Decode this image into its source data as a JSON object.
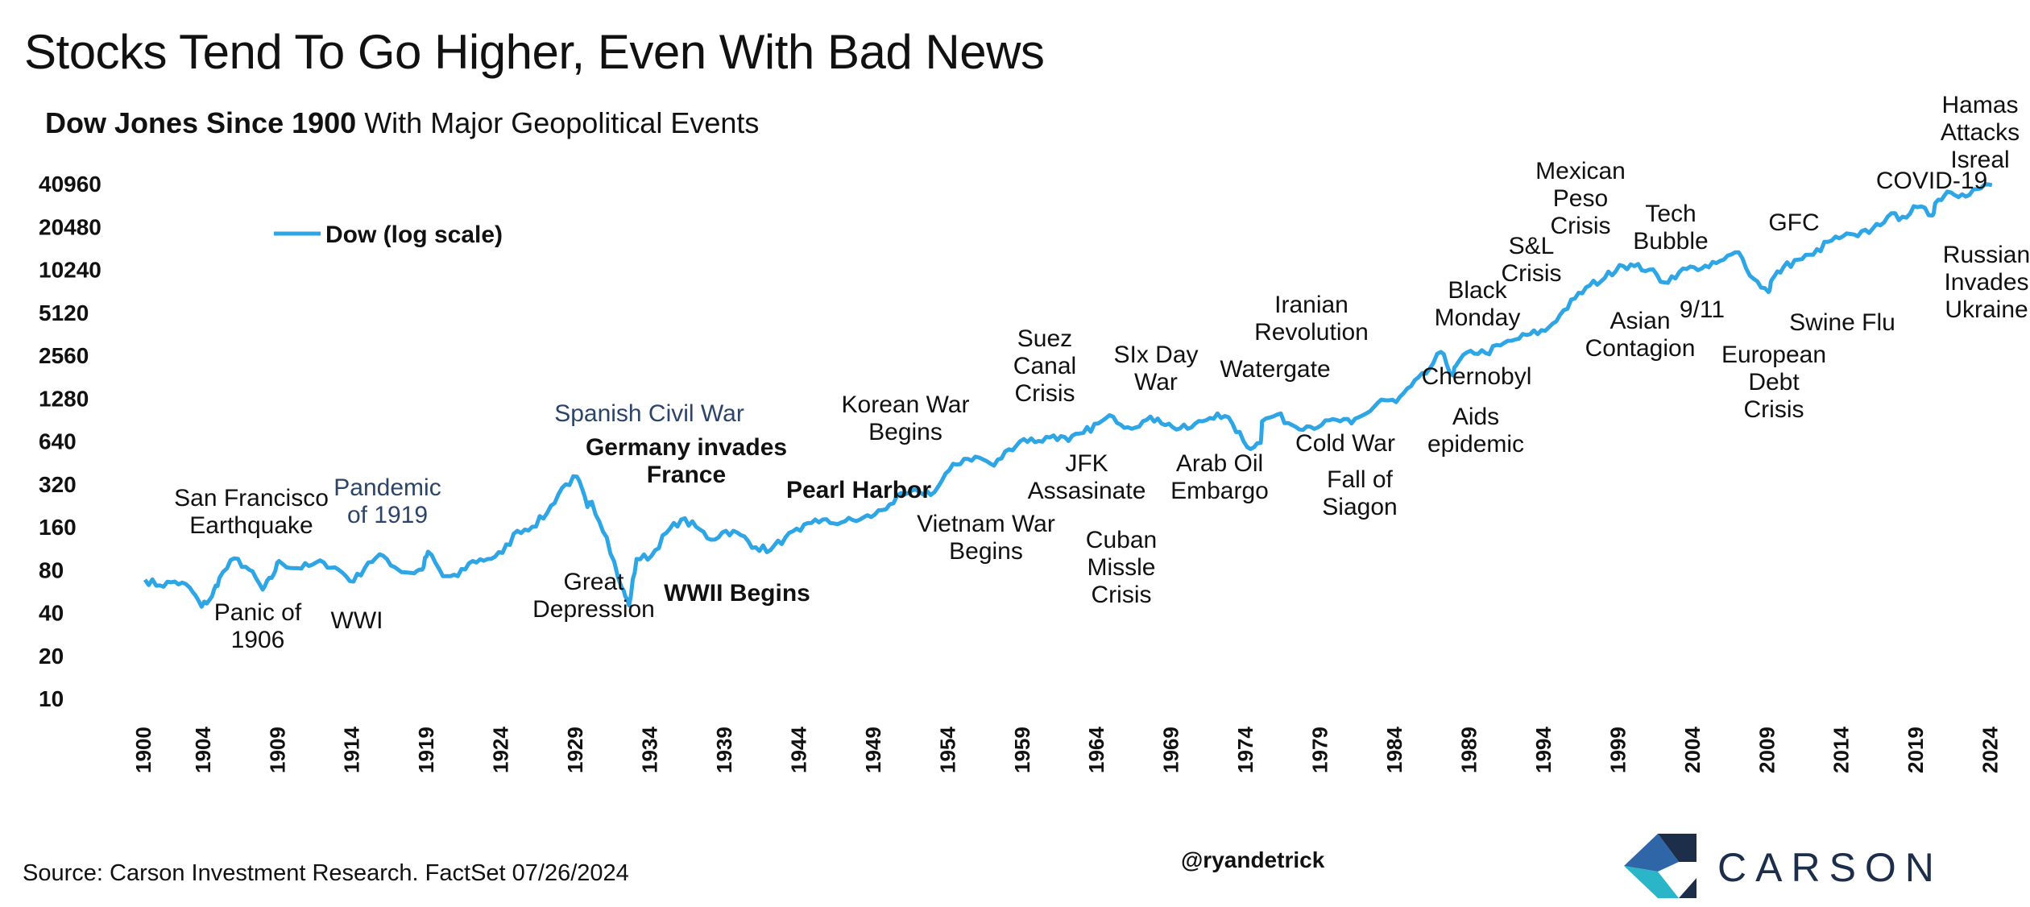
{
  "title": "Stocks Tend To Go Higher, Even With Bad News",
  "subtitle_bold": "Dow Jones Since 1900",
  "subtitle_rest": "With Major Geopolitical Events",
  "source": "Source: Carson Investment Research. FactSet 07/26/2024",
  "handle": "@ryandetrick",
  "brand": "CARSON",
  "colors": {
    "line": "#2ea6e6",
    "text": "#111111",
    "blue_annotation": "#2b4468",
    "logo_dark": "#1c2e4a",
    "logo_teal": "#2bb5c9"
  },
  "chart_data": {
    "type": "line",
    "scale": "log2",
    "ylim": [
      10,
      40960
    ],
    "xlim": [
      1900,
      2024.5
    ],
    "y_ticks": [
      "10",
      "20",
      "40",
      "80",
      "160",
      "320",
      "640",
      "1280",
      "2560",
      "5120",
      "10240",
      "20480",
      "40960"
    ],
    "x_ticks": [
      "1900",
      "1904",
      "1909",
      "1914",
      "1919",
      "1924",
      "1929",
      "1934",
      "1939",
      "1944",
      "1949",
      "1954",
      "1959",
      "1964",
      "1969",
      "1974",
      "1979",
      "1984",
      "1989",
      "1994",
      "1999",
      "2004",
      "2009",
      "2014",
      "2019",
      "2024"
    ],
    "legend": {
      "label": "Dow (log scale)",
      "placement": "top-left"
    },
    "grid": false,
    "series": [
      {
        "name": "Dow (log scale)",
        "x": [
          1900,
          1901,
          1902,
          1903,
          1903.8,
          1904.5,
          1905,
          1906,
          1907,
          1907.9,
          1908.5,
          1909,
          1910,
          1911,
          1912,
          1913,
          1914,
          1915,
          1916,
          1917,
          1917.9,
          1918.6,
          1919,
          1920,
          1921,
          1922,
          1923,
          1924,
          1925,
          1926,
          1927,
          1928,
          1929,
          1929.7,
          1930,
          1931,
          1932,
          1932.5,
          1933,
          1934,
          1935,
          1936,
          1937,
          1938,
          1939,
          1940,
          1941,
          1942,
          1943,
          1944,
          1945,
          1946,
          1947,
          1948,
          1949,
          1950,
          1951,
          1952,
          1953,
          1954,
          1955,
          1956,
          1957,
          1958,
          1959,
          1960,
          1961,
          1962,
          1963,
          1964,
          1965,
          1966,
          1967,
          1968,
          1969,
          1970,
          1971,
          1972,
          1973,
          1974,
          1974.9,
          1975,
          1976,
          1977,
          1978,
          1979,
          1980,
          1981,
          1982,
          1983,
          1984,
          1985,
          1986,
          1987,
          1987.8,
          1988,
          1989,
          1990,
          1991,
          1992,
          1993,
          1994,
          1995,
          1996,
          1997,
          1998,
          1999,
          2000,
          2001,
          2002,
          2003,
          2004,
          2005,
          2006,
          2007,
          2008,
          2009,
          2009.2,
          2010,
          2011,
          2012,
          2013,
          2014,
          2015,
          2016,
          2017,
          2018,
          2019,
          2020,
          2020.2,
          2021,
          2022,
          2023,
          2024
        ],
        "y": [
          68,
          62,
          66,
          60,
          44,
          52,
          70,
          96,
          80,
          58,
          70,
          92,
          82,
          85,
          90,
          80,
          66,
          90,
          100,
          80,
          76,
          80,
          107,
          72,
          72,
          92,
          95,
          105,
          150,
          160,
          200,
          300,
          360,
          220,
          240,
          135,
          60,
          45,
          95,
          100,
          145,
          180,
          160,
          130,
          150,
          140,
          115,
          110,
          135,
          150,
          180,
          170,
          175,
          180,
          195,
          230,
          270,
          280,
          280,
          400,
          480,
          490,
          430,
          560,
          660,
          640,
          700,
          640,
          730,
          850,
          950,
          800,
          880,
          920,
          800,
          780,
          880,
          1000,
          850,
          580,
          620,
          880,
          980,
          830,
          810,
          830,
          900,
          850,
          1000,
          1250,
          1200,
          1550,
          1900,
          2700,
          1850,
          2150,
          2750,
          2650,
          3000,
          3300,
          3600,
          3800,
          4900,
          6400,
          7900,
          8900,
          11000,
          10800,
          10200,
          8300,
          9800,
          10600,
          10600,
          12000,
          13500,
          8800,
          7100,
          8600,
          10600,
          12000,
          13000,
          16000,
          17500,
          17500,
          19800,
          24000,
          24000,
          28000,
          24500,
          30000,
          36000,
          34500,
          37500,
          40000
        ]
      }
    ],
    "annotations": [
      {
        "text": "San Francisco\nEarthquake",
        "style": "normal"
      },
      {
        "text": "Panic of\n1906",
        "style": "normal"
      },
      {
        "text": "WWI",
        "style": "normal"
      },
      {
        "text": "Pandemic\nof 1919",
        "style": "blue"
      },
      {
        "text": "Great\nDepression",
        "style": "normal"
      },
      {
        "text": "Spanish Civil War",
        "style": "blue"
      },
      {
        "text": "Germany invades\nFrance",
        "style": "bold"
      },
      {
        "text": "WWII Begins",
        "style": "bold"
      },
      {
        "text": "Pearl Harbor",
        "style": "bold"
      },
      {
        "text": "Korean War\nBegins",
        "style": "normal"
      },
      {
        "text": "Vietnam War\nBegins",
        "style": "normal"
      },
      {
        "text": "Suez\nCanal\nCrisis",
        "style": "normal"
      },
      {
        "text": "JFK\nAssasinate",
        "style": "normal"
      },
      {
        "text": "Cuban\nMissle\nCrisis",
        "style": "normal"
      },
      {
        "text": "SIx Day\nWar",
        "style": "normal"
      },
      {
        "text": "Arab Oil\nEmbargo",
        "style": "normal"
      },
      {
        "text": "Watergate",
        "style": "normal"
      },
      {
        "text": "Iranian\nRevolution",
        "style": "normal"
      },
      {
        "text": "Cold War",
        "style": "normal"
      },
      {
        "text": "Fall of\nSiagon",
        "style": "normal"
      },
      {
        "text": "Aids\nepidemic",
        "style": "normal"
      },
      {
        "text": "Black\nMonday",
        "style": "normal"
      },
      {
        "text": "Chernobyl",
        "style": "normal"
      },
      {
        "text": "S&L\nCrisis",
        "style": "normal"
      },
      {
        "text": "Mexican\nPeso\nCrisis",
        "style": "normal"
      },
      {
        "text": "Asian\nContagion",
        "style": "normal"
      },
      {
        "text": "Tech\nBubble",
        "style": "normal"
      },
      {
        "text": "9/11",
        "style": "normal"
      },
      {
        "text": "European\nDebt\nCrisis",
        "style": "normal"
      },
      {
        "text": "GFC",
        "style": "normal"
      },
      {
        "text": "Swine Flu",
        "style": "normal"
      },
      {
        "text": "COVID-19",
        "style": "normal"
      },
      {
        "text": "Hamas\nAttacks\nIsreal",
        "style": "normal"
      },
      {
        "text": "Russian\nInvades\nUkraine",
        "style": "normal"
      }
    ]
  }
}
